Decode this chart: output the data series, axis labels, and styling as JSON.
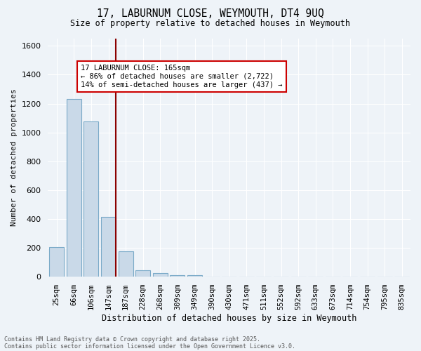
{
  "title1": "17, LABURNUM CLOSE, WEYMOUTH, DT4 9UQ",
  "title2": "Size of property relative to detached houses in Weymouth",
  "xlabel": "Distribution of detached houses by size in Weymouth",
  "ylabel": "Number of detached properties",
  "bin_labels": [
    "25sqm",
    "66sqm",
    "106sqm",
    "147sqm",
    "187sqm",
    "228sqm",
    "268sqm",
    "309sqm",
    "349sqm",
    "390sqm",
    "430sqm",
    "471sqm",
    "511sqm",
    "552sqm",
    "592sqm",
    "633sqm",
    "673sqm",
    "714sqm",
    "754sqm",
    "795sqm",
    "835sqm"
  ],
  "bar_values": [
    205,
    1230,
    1075,
    415,
    175,
    45,
    25,
    12,
    12,
    0,
    0,
    0,
    0,
    0,
    0,
    0,
    0,
    0,
    0,
    0,
    0
  ],
  "bar_color": "#c9d9e8",
  "bar_edgecolor": "#7aaac8",
  "vline_color": "#8b0000",
  "property_sqm": 165,
  "bin_min": 25,
  "bin_width": 41,
  "ylim": [
    0,
    1650
  ],
  "yticks": [
    0,
    200,
    400,
    600,
    800,
    1000,
    1200,
    1400,
    1600
  ],
  "annotation_line1": "17 LABURNUM CLOSE: 165sqm",
  "annotation_line2": "← 86% of detached houses are smaller (2,722)",
  "annotation_line3": "14% of semi-detached houses are larger (437) →",
  "annotation_box_color": "#ffffff",
  "annotation_box_edgecolor": "#cc0000",
  "footer1": "Contains HM Land Registry data © Crown copyright and database right 2025.",
  "footer2": "Contains public sector information licensed under the Open Government Licence v3.0.",
  "bg_color": "#eef3f8",
  "grid_color": "#ffffff"
}
